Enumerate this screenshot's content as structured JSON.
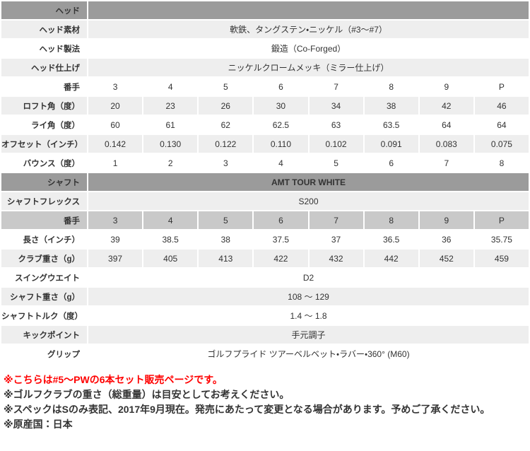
{
  "colors": {
    "header_bg": "#9b9b9b",
    "subheader_bg": "#c9c9c9",
    "alt_bg": "#eeeeee",
    "white_bg": "#ffffff",
    "text": "#333333",
    "note_red": "#ff0000"
  },
  "table": {
    "club_numbers": [
      "3",
      "4",
      "5",
      "6",
      "7",
      "8",
      "9",
      "P"
    ],
    "rows": [
      {
        "label": "ヘッド",
        "kind": "section",
        "value": ""
      },
      {
        "label": "ヘッド素材",
        "kind": "span",
        "bg": "alt",
        "value": "軟鉄、タングステン・ニッケル（#3～#7）"
      },
      {
        "label": "ヘッド製法",
        "kind": "span",
        "bg": "white",
        "value": "鍛造（Co-Forged）"
      },
      {
        "label": "ヘッド仕上げ",
        "kind": "span",
        "bg": "alt",
        "value": "ニッケルクロームメッキ（ミラー仕上げ）"
      },
      {
        "label": "番手",
        "kind": "cells",
        "bg": "white",
        "values": [
          "3",
          "4",
          "5",
          "6",
          "7",
          "8",
          "9",
          "P"
        ]
      },
      {
        "label": "ロフト角（度）",
        "kind": "cells",
        "bg": "alt",
        "values": [
          "20",
          "23",
          "26",
          "30",
          "34",
          "38",
          "42",
          "46"
        ]
      },
      {
        "label": "ライ角（度）",
        "kind": "cells",
        "bg": "white",
        "values": [
          "60",
          "61",
          "62",
          "62.5",
          "63",
          "63.5",
          "64",
          "64"
        ]
      },
      {
        "label": "オフセット（インチ）",
        "kind": "cells",
        "bg": "alt",
        "values": [
          "0.142",
          "0.130",
          "0.122",
          "0.110",
          "0.102",
          "0.091",
          "0.083",
          "0.075"
        ]
      },
      {
        "label": "バウンス（度）",
        "kind": "cells",
        "bg": "white",
        "values": [
          "1",
          "2",
          "3",
          "4",
          "5",
          "6",
          "7",
          "8"
        ]
      },
      {
        "label": "シャフト",
        "kind": "section",
        "value": "AMT TOUR WHITE"
      },
      {
        "label": "シャフトフレックス",
        "kind": "span",
        "bg": "alt",
        "value": "S200"
      },
      {
        "label": "番手",
        "kind": "cells",
        "bg": "sub",
        "values": [
          "3",
          "4",
          "5",
          "6",
          "7",
          "8",
          "9",
          "P"
        ]
      },
      {
        "label": "長さ（インチ）",
        "kind": "cells",
        "bg": "white",
        "values": [
          "39",
          "38.5",
          "38",
          "37.5",
          "37",
          "36.5",
          "36",
          "35.75"
        ]
      },
      {
        "label": "クラブ重さ（g）",
        "kind": "cells",
        "bg": "alt",
        "values": [
          "397",
          "405",
          "413",
          "422",
          "432",
          "442",
          "452",
          "459"
        ]
      },
      {
        "label": "スイングウエイト",
        "kind": "span",
        "bg": "white",
        "value": "D2"
      },
      {
        "label": "シャフト重さ（g）",
        "kind": "span",
        "bg": "alt",
        "value": "108 ～ 129"
      },
      {
        "label": "シャフトトルク（度）",
        "kind": "span",
        "bg": "white",
        "value": "1.4 ～ 1.8"
      },
      {
        "label": "キックポイント",
        "kind": "span",
        "bg": "alt",
        "value": "手元調子"
      },
      {
        "label": "グリップ",
        "kind": "span",
        "bg": "white",
        "value": "ゴルフプライド ツアーベルベット・ラバー・360° (M60)"
      }
    ]
  },
  "notes": [
    {
      "text": "※こちらは#5～PWの6本セット販売ページです。",
      "color": "red"
    },
    {
      "text": "※ゴルフクラブの重さ（総重量）は目安としてお考えください。",
      "color": "default"
    },
    {
      "text": "※スペックはSのみ表記、2017年9月現在。発売にあたって変更となる場合があります。予めご了承ください。",
      "color": "default"
    },
    {
      "text": "※原産国：日本",
      "color": "default"
    }
  ]
}
